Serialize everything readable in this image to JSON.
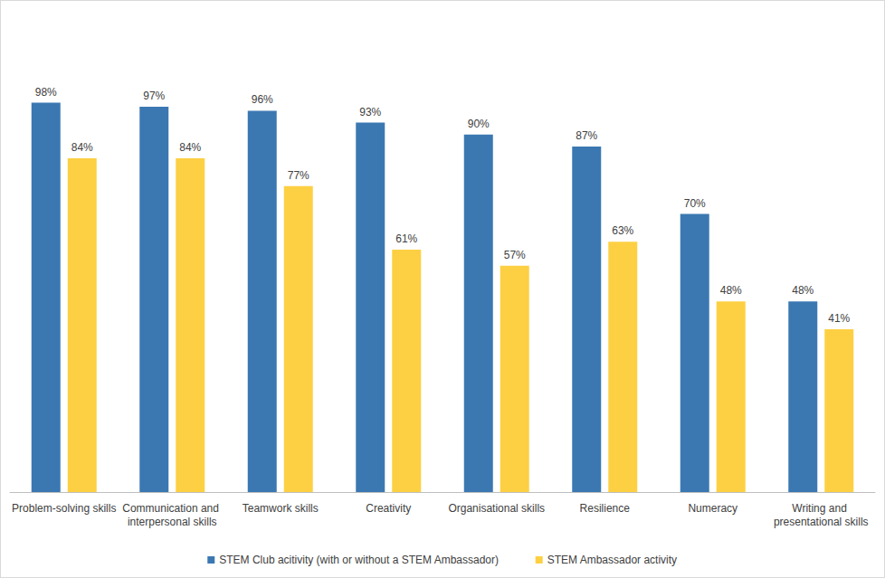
{
  "chart_data": {
    "type": "bar",
    "categories": [
      "Problem-solving skills",
      "Communication and interpersonal skills",
      "Teamwork skills",
      "Creativity",
      "Organisational skills",
      "Resilience",
      "Numeracy",
      "Writing and presentational skills"
    ],
    "series": [
      {
        "name": "STEM Club acitivity (with or without a STEM Ambassador)",
        "color": "#3b78b2",
        "values": [
          98,
          97,
          96,
          93,
          90,
          87,
          70,
          48
        ],
        "value_labels": [
          "98%",
          "97%",
          "96%",
          "93%",
          "90%",
          "87%",
          "70%",
          "48%"
        ]
      },
      {
        "name": "STEM Ambassador activity",
        "color": "#fdd043",
        "values": [
          84,
          84,
          77,
          61,
          57,
          63,
          48,
          41
        ],
        "value_labels": [
          "84%",
          "84%",
          "77%",
          "61%",
          "57%",
          "63%",
          "48%",
          "41%"
        ]
      }
    ],
    "ylim": [
      0,
      120
    ],
    "grid": false,
    "legend": "bottom",
    "data_labels": true,
    "tick_labels": "x"
  }
}
